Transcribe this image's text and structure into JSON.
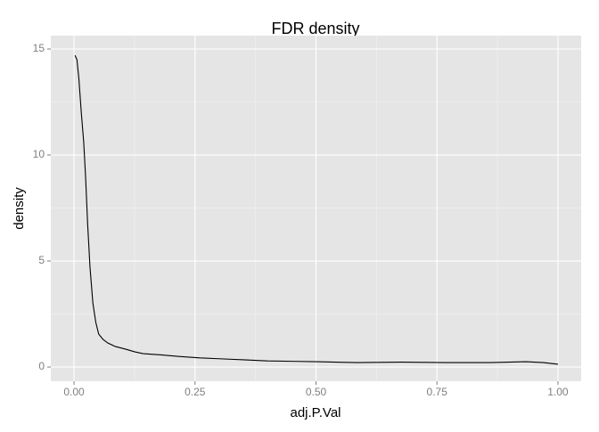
{
  "chart_data": {
    "type": "line",
    "title": "FDR density",
    "x_label": "adj.P.Val",
    "y_label": "density",
    "series": [
      {
        "color": "#000000",
        "x": [
          0.002,
          0.006,
          0.01,
          0.015,
          0.02,
          0.024,
          0.028,
          0.033,
          0.039,
          0.045,
          0.051,
          0.06,
          0.07,
          0.085,
          0.107,
          0.125,
          0.143,
          0.18,
          0.217,
          0.26,
          0.31,
          0.35,
          0.4,
          0.45,
          0.5,
          0.585,
          0.676,
          0.768,
          0.86,
          0.934,
          0.97,
          1.0
        ],
        "values": [
          14.7,
          14.5,
          13.6,
          12.0,
          10.6,
          8.9,
          6.8,
          4.7,
          3.0,
          2.1,
          1.55,
          1.3,
          1.13,
          0.97,
          0.84,
          0.72,
          0.63,
          0.57,
          0.5,
          0.43,
          0.38,
          0.34,
          0.29,
          0.27,
          0.25,
          0.21,
          0.23,
          0.21,
          0.21,
          0.25,
          0.21,
          0.13
        ]
      }
    ],
    "xlim": [
      -0.048,
      1.048
    ],
    "ylim": [
      -0.67,
      15.63
    ],
    "xticks": [
      {
        "value": 0,
        "label": "0.00"
      },
      {
        "value": 0.25,
        "label": "0.25"
      },
      {
        "value": 0.5,
        "label": "0.50"
      },
      {
        "value": 0.75,
        "label": "0.75"
      },
      {
        "value": 1,
        "label": "1.00"
      }
    ],
    "yticks": [
      0,
      5,
      10,
      15
    ],
    "x_minor_breaks": [
      0.125,
      0.375,
      0.625,
      0.875
    ],
    "y_minor_breaks": [
      2.5,
      7.5,
      12.5
    ],
    "grid": true,
    "panel_color": "#e5e5e5"
  }
}
